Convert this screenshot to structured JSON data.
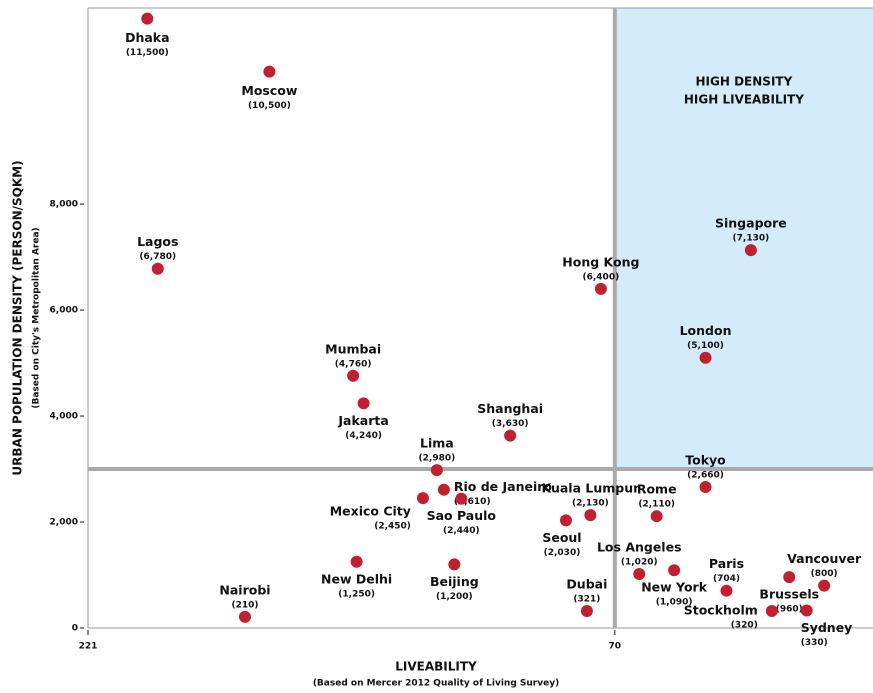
{
  "chart_data": {
    "type": "scatter",
    "y_label": "URBAN POPULATION DENSITY (PERSON/SQKM)",
    "y_sublabel": "(Based on City's Metropolitan Area)",
    "x_label": "LIVEABILITY",
    "x_sublabel": "(Based on Mercer 2012 Quality of Living Survey)",
    "quadrant_label": [
      "HIGH DENSITY",
      "HIGH LIVEABILITY"
    ],
    "quadrant_color": "#d4ecf9",
    "thresholds": {
      "x": 70,
      "y": 3000
    },
    "xlim": [
      221,
      -4
    ],
    "xticks": [
      221,
      70
    ],
    "ylim": [
      0,
      11700
    ],
    "yticks": [
      0,
      {
        "value": 2000,
        "label": "2,000"
      },
      {
        "value": 4000,
        "label": "4,000"
      },
      {
        "value": 6000,
        "label": "6,000"
      },
      {
        "value": 8000,
        "label": "8,000"
      }
    ],
    "color": "#c0202f",
    "names": [
      "Dhaka",
      "Moscow",
      "Lagos",
      "Mumbai",
      "Jakarta",
      "Lima",
      "Rio de Janeiro",
      "Mexico City",
      "Sao Paulo",
      "Shanghai",
      "Hong Kong",
      "Kuala Lumpur",
      "Seoul",
      "Dubai",
      "Beijing",
      "New Delhi",
      "Nairobi",
      "Singapore",
      "London",
      "Tokyo",
      "Rome",
      "Los Angeles",
      "New York",
      "Paris",
      "Brussels",
      "Vancouver",
      "Stockholm",
      "Sydney"
    ],
    "x": [
      204,
      169,
      201,
      145,
      142,
      121,
      119,
      125,
      114,
      100,
      74,
      77,
      84,
      78,
      116,
      144,
      176,
      31,
      44,
      44,
      58,
      63,
      53,
      38,
      20,
      10,
      25,
      15
    ],
    "values": [
      11500,
      10500,
      6780,
      4760,
      4240,
      2980,
      2610,
      2450,
      2440,
      3630,
      6400,
      2130,
      2030,
      321,
      1200,
      1250,
      210,
      7130,
      5100,
      2660,
      2110,
      1020,
      1090,
      704,
      960,
      800,
      320,
      330
    ],
    "value_labels": [
      "(11,500)",
      "(10,500)",
      "(6,780)",
      "(4,760)",
      "(4,240)",
      "(2,980)",
      "(2,610)",
      "(2,450)",
      "(2,440)",
      "(3,630)",
      "(6,400)",
      "(2,130)",
      "(2,030)",
      "(321)",
      "(1,200)",
      "(1,250)",
      "(210)",
      "(7,130)",
      "(5,100)",
      "(2,660)",
      "(2,110)",
      "(1,020)",
      "(1,090)",
      "(704)",
      "(960)",
      "(800)",
      "(320)",
      "(330)"
    ]
  }
}
